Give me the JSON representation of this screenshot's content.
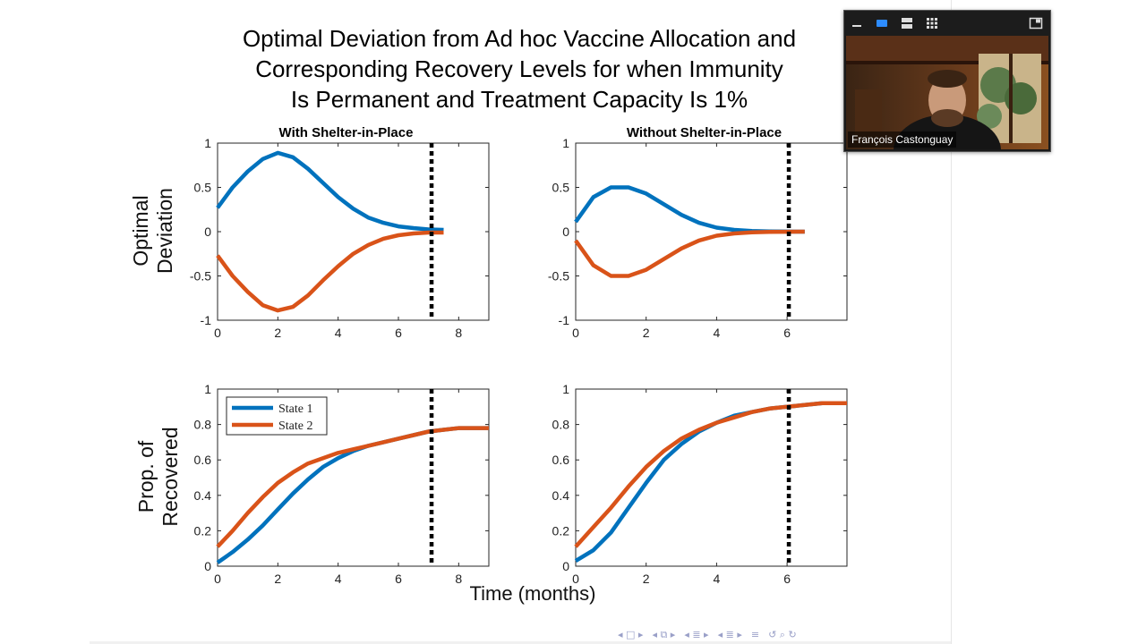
{
  "slide": {
    "title_lines": [
      "Optimal Deviation from Ad hoc Vaccine Allocation and",
      "Corresponding Recovery Levels for when Immunity",
      "Is Permanent and Treatment Capacity Is 1%"
    ]
  },
  "figure": {
    "y_label_top": [
      "Optimal",
      "Deviation"
    ],
    "y_label_bottom": [
      "Prop. of",
      "Recovered"
    ],
    "x_label": "Time (months)"
  },
  "colors": {
    "state1": "#0072BD",
    "state2": "#D95319"
  },
  "chart_data": [
    {
      "type": "line",
      "id": "dev_with",
      "title": "With Shelter-in-Place",
      "xlim": [
        0,
        9
      ],
      "ylim": [
        -1,
        1
      ],
      "xticks": [
        0,
        2,
        4,
        6,
        8
      ],
      "yticks": [
        -1,
        -0.5,
        0,
        0.5,
        1
      ],
      "ytick_labels": [
        "-1",
        "-0.5",
        "0",
        "0.5",
        "1"
      ],
      "vline_x": 7.1,
      "series": [
        {
          "name": "State 1",
          "x": [
            0,
            0.5,
            1,
            1.5,
            2,
            2.5,
            3,
            3.5,
            4,
            4.5,
            5,
            5.5,
            6,
            6.5,
            7,
            7.5
          ],
          "y": [
            0.27,
            0.5,
            0.68,
            0.82,
            0.89,
            0.84,
            0.71,
            0.55,
            0.39,
            0.26,
            0.16,
            0.1,
            0.06,
            0.04,
            0.025,
            0.02
          ]
        },
        {
          "name": "State 2",
          "x": [
            0,
            0.5,
            1,
            1.5,
            2,
            2.5,
            3,
            3.5,
            4,
            4.5,
            5,
            5.5,
            6,
            6.5,
            7,
            7.5
          ],
          "y": [
            -0.27,
            -0.5,
            -0.68,
            -0.83,
            -0.89,
            -0.85,
            -0.72,
            -0.55,
            -0.39,
            -0.25,
            -0.15,
            -0.08,
            -0.04,
            -0.02,
            -0.01,
            -0.01
          ]
        }
      ]
    },
    {
      "type": "line",
      "id": "dev_without",
      "title": "Without Shelter-in-Place",
      "xlim": [
        0,
        7.7
      ],
      "ylim": [
        -1,
        1
      ],
      "xticks": [
        0,
        2,
        4,
        6
      ],
      "yticks": [
        -1,
        -0.5,
        0,
        0.5,
        1
      ],
      "ytick_labels": [
        "-1",
        "-0.5",
        "0",
        "0.5",
        "1"
      ],
      "vline_x": 6.05,
      "series": [
        {
          "name": "State 1",
          "x": [
            0,
            0.5,
            1,
            1.5,
            2,
            2.5,
            3,
            3.5,
            4,
            4.5,
            5,
            5.5,
            6,
            6.5
          ],
          "y": [
            0.11,
            0.39,
            0.5,
            0.5,
            0.43,
            0.31,
            0.19,
            0.1,
            0.045,
            0.02,
            0.008,
            0.003,
            0.001,
            0
          ]
        },
        {
          "name": "State 2",
          "x": [
            0,
            0.5,
            1,
            1.5,
            2,
            2.5,
            3,
            3.5,
            4,
            4.5,
            5,
            5.5,
            6,
            6.5
          ],
          "y": [
            -0.1,
            -0.38,
            -0.5,
            -0.5,
            -0.43,
            -0.31,
            -0.19,
            -0.1,
            -0.045,
            -0.02,
            -0.008,
            -0.003,
            -0.001,
            0
          ]
        }
      ]
    },
    {
      "type": "line",
      "id": "rec_with",
      "title": "",
      "xlim": [
        0,
        9
      ],
      "ylim": [
        0,
        1
      ],
      "xticks": [
        0,
        2,
        4,
        6,
        8
      ],
      "yticks": [
        0,
        0.2,
        0.4,
        0.6,
        0.8,
        1
      ],
      "ytick_labels": [
        "0",
        "0.2",
        "0.4",
        "0.6",
        "0.8",
        "1"
      ],
      "vline_x": 7.1,
      "legend": "top-left",
      "series": [
        {
          "name": "State 1",
          "x": [
            0,
            0.5,
            1,
            1.5,
            2,
            2.5,
            3,
            3.5,
            4,
            4.5,
            5,
            5.5,
            6,
            6.5,
            7,
            7.5,
            8,
            8.5,
            9
          ],
          "y": [
            0.02,
            0.08,
            0.15,
            0.23,
            0.32,
            0.41,
            0.49,
            0.56,
            0.61,
            0.65,
            0.68,
            0.7,
            0.72,
            0.74,
            0.76,
            0.77,
            0.78,
            0.78,
            0.78
          ]
        },
        {
          "name": "State 2",
          "x": [
            0,
            0.5,
            1,
            1.5,
            2,
            2.5,
            3,
            3.5,
            4,
            4.5,
            5,
            5.5,
            6,
            6.5,
            7,
            7.5,
            8,
            8.5,
            9
          ],
          "y": [
            0.11,
            0.2,
            0.3,
            0.39,
            0.47,
            0.53,
            0.58,
            0.61,
            0.64,
            0.66,
            0.68,
            0.7,
            0.72,
            0.74,
            0.76,
            0.77,
            0.78,
            0.78,
            0.78
          ]
        }
      ]
    },
    {
      "type": "line",
      "id": "rec_without",
      "title": "",
      "xlim": [
        0,
        7.7
      ],
      "ylim": [
        0,
        1
      ],
      "xticks": [
        0,
        2,
        4,
        6
      ],
      "yticks": [
        0,
        0.2,
        0.4,
        0.6,
        0.8,
        1
      ],
      "ytick_labels": [
        "0",
        "0.2",
        "0.4",
        "0.6",
        "0.8",
        "1"
      ],
      "vline_x": 6.05,
      "series": [
        {
          "name": "State 1",
          "x": [
            0,
            0.5,
            1,
            1.5,
            2,
            2.5,
            3,
            3.5,
            4,
            4.5,
            5,
            5.5,
            6,
            6.5,
            7,
            7.5,
            7.7
          ],
          "y": [
            0.03,
            0.09,
            0.19,
            0.33,
            0.47,
            0.6,
            0.69,
            0.76,
            0.81,
            0.85,
            0.87,
            0.89,
            0.9,
            0.91,
            0.92,
            0.92,
            0.92
          ]
        },
        {
          "name": "State 2",
          "x": [
            0,
            0.5,
            1,
            1.5,
            2,
            2.5,
            3,
            3.5,
            4,
            4.5,
            5,
            5.5,
            6,
            6.5,
            7,
            7.5,
            7.7
          ],
          "y": [
            0.11,
            0.22,
            0.33,
            0.45,
            0.56,
            0.65,
            0.72,
            0.77,
            0.81,
            0.84,
            0.87,
            0.89,
            0.9,
            0.91,
            0.92,
            0.92,
            0.92
          ]
        }
      ]
    }
  ],
  "video": {
    "participant_name": "François Castonguay",
    "toolbar_icons": [
      "minimize-icon",
      "active-speaker-icon",
      "speaker-view-icon",
      "gallery-view-icon",
      "exit-minimized-icon"
    ]
  },
  "nav": {
    "icons": [
      "◂ □ ▸",
      "◂ ⧉ ▸",
      "◂ ≣ ▸",
      "◂ ≣ ▸",
      "≡",
      "↺ ⌕ ↻"
    ]
  }
}
